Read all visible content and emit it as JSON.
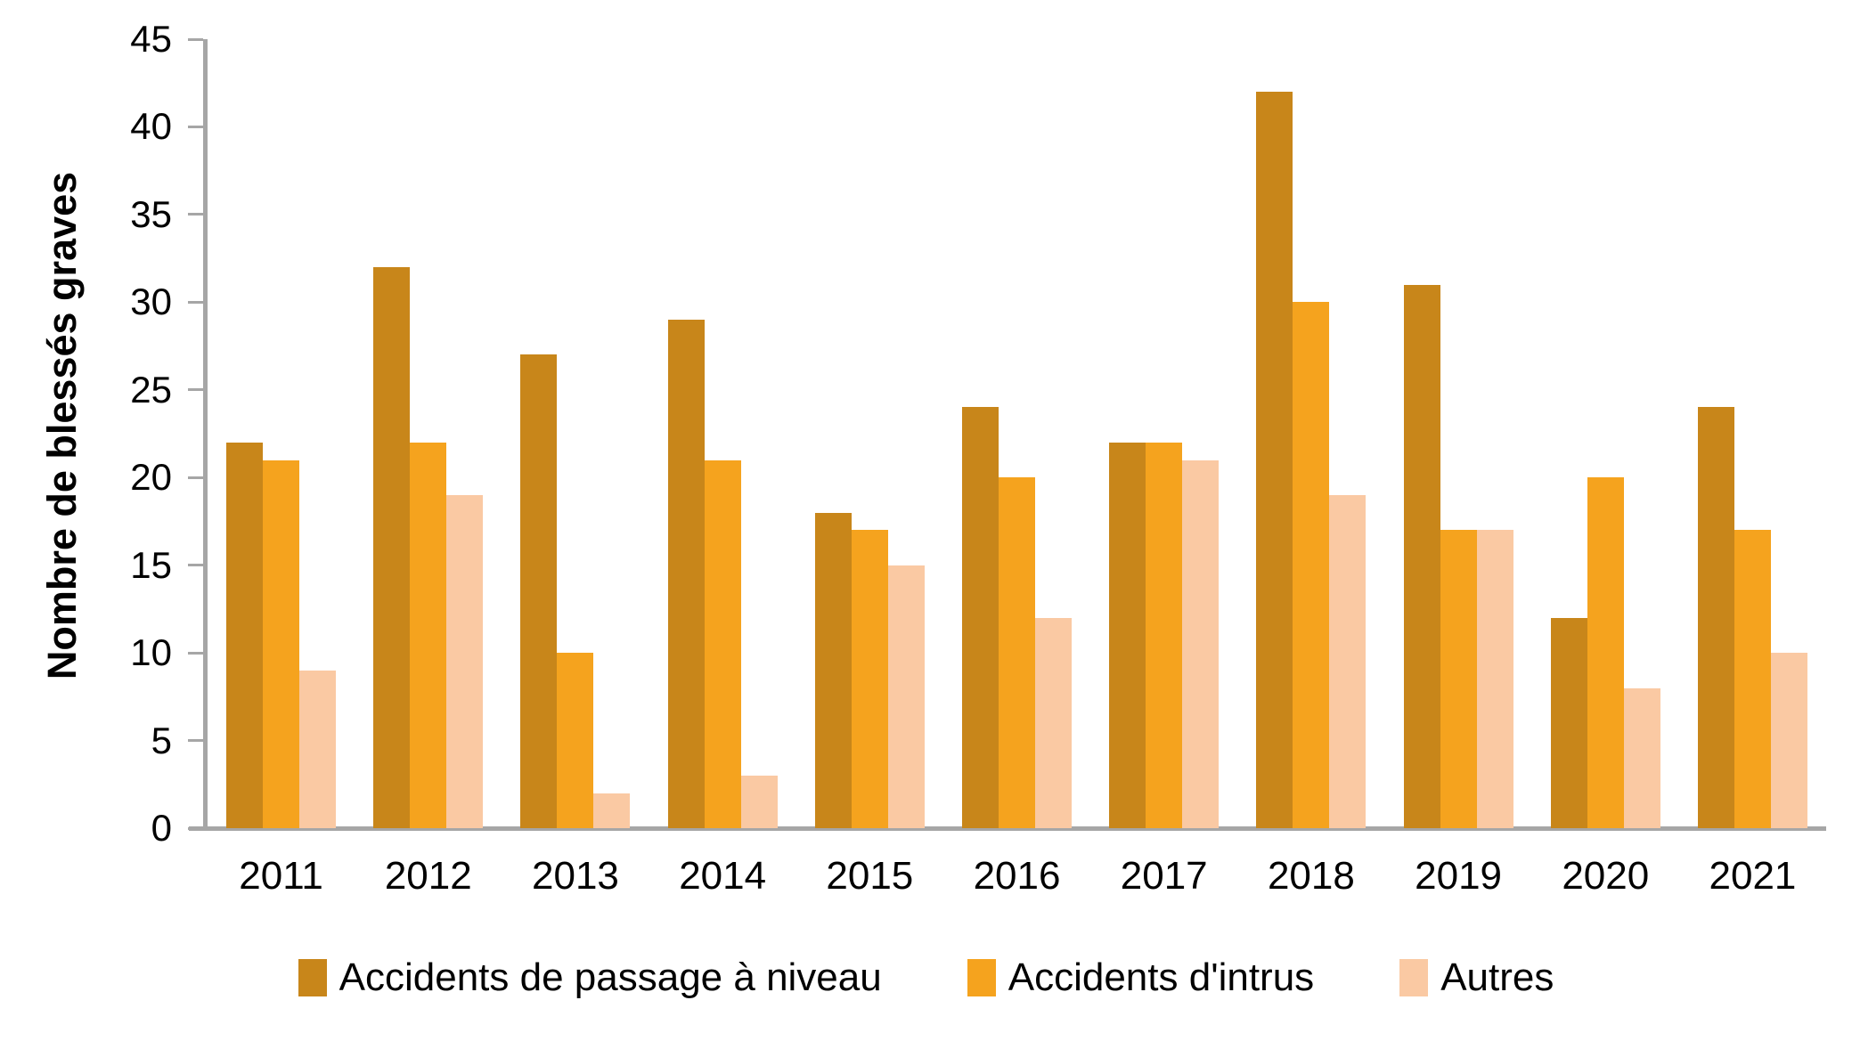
{
  "chart_data": {
    "type": "bar",
    "title": "",
    "ylabel": "Nombre de blessés graves",
    "xlabel": "",
    "ylim": [
      0,
      45
    ],
    "ytick_step": 5,
    "grid": false,
    "legend_position": "bottom",
    "categories": [
      "2011",
      "2012",
      "2013",
      "2014",
      "2015",
      "2016",
      "2017",
      "2018",
      "2019",
      "2020",
      "2021"
    ],
    "series": [
      {
        "name": "Accidents de passage à niveau",
        "color": "#C8861A",
        "values": [
          22,
          32,
          27,
          29,
          18,
          24,
          22,
          42,
          31,
          12,
          24
        ]
      },
      {
        "name": "Accidents d'intrus",
        "color": "#F5A31E",
        "values": [
          21,
          22,
          10,
          21,
          17,
          20,
          22,
          30,
          17,
          20,
          17
        ]
      },
      {
        "name": "Autres",
        "color": "#FAC9A3",
        "values": [
          9,
          19,
          2,
          3,
          15,
          12,
          21,
          19,
          17,
          8,
          10
        ]
      }
    ],
    "axis_color": "#A6A6A6",
    "text_color": "#000000"
  }
}
